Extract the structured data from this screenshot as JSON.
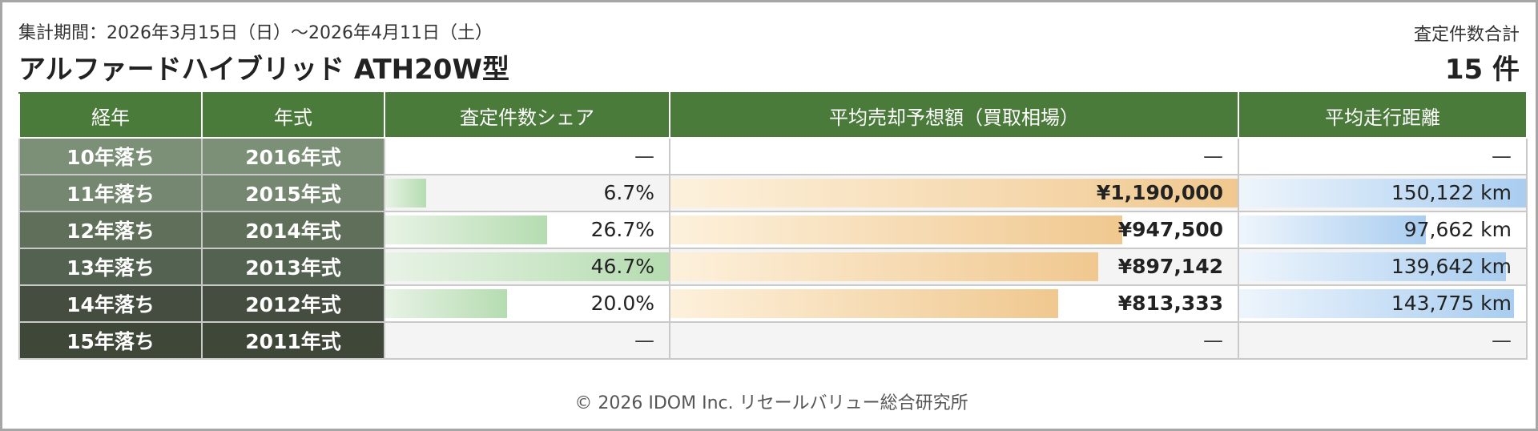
{
  "header": {
    "period": "集計期間：2026年3月15日（日）〜2026年4月11日（土）",
    "title": "アルファードハイブリッド ATH20W型",
    "total_label": "査定件数合計",
    "total_value": "15 件"
  },
  "table": {
    "columns": [
      "経年",
      "年式",
      "査定件数シェア",
      "平均売却予想額（買取相場）",
      "平均走行距離"
    ],
    "rows": [
      {
        "age": "10年落ち",
        "year": "2016年式",
        "share": "—",
        "share_pct": 0,
        "price": "—",
        "price_pct": 0,
        "distance": "—",
        "distance_pct": 0,
        "age_color": "#7c8f77"
      },
      {
        "age": "11年落ち",
        "year": "2015年式",
        "share": "6.7%",
        "share_pct": 14.3,
        "price": "¥1,190,000",
        "price_pct": 100,
        "distance": "150,122 km",
        "distance_pct": 100,
        "age_color": "#758770"
      },
      {
        "age": "12年落ち",
        "year": "2014年式",
        "share": "26.7%",
        "share_pct": 57.2,
        "price": "¥947,500",
        "price_pct": 79.6,
        "distance": "97,662 km",
        "distance_pct": 65.1,
        "age_color": "#5f6f5a"
      },
      {
        "age": "13年落ち",
        "year": "2013年式",
        "share": "46.7%",
        "share_pct": 100,
        "price": "¥897,142",
        "price_pct": 75.4,
        "distance": "139,642 km",
        "distance_pct": 93.0,
        "age_color": "#546351"
      },
      {
        "age": "14年落ち",
        "year": "2012年式",
        "share": "20.0%",
        "share_pct": 42.8,
        "price": "¥813,333",
        "price_pct": 68.3,
        "distance": "143,775 km",
        "distance_pct": 95.8,
        "age_color": "#444d40"
      },
      {
        "age": "15年落ち",
        "year": "2011年式",
        "share": "—",
        "share_pct": 0,
        "price": "—",
        "price_pct": 0,
        "distance": "—",
        "distance_pct": 0,
        "age_color": "#3f4739"
      }
    ]
  },
  "footer": "© 2026 IDOM Inc. リセールバリュー総合研究所",
  "colors": {
    "header_green": "#4a7b3a",
    "share_bar": "#b5dcb0",
    "price_bar": "#f0c88f",
    "distance_bar": "#a9cdf0"
  }
}
